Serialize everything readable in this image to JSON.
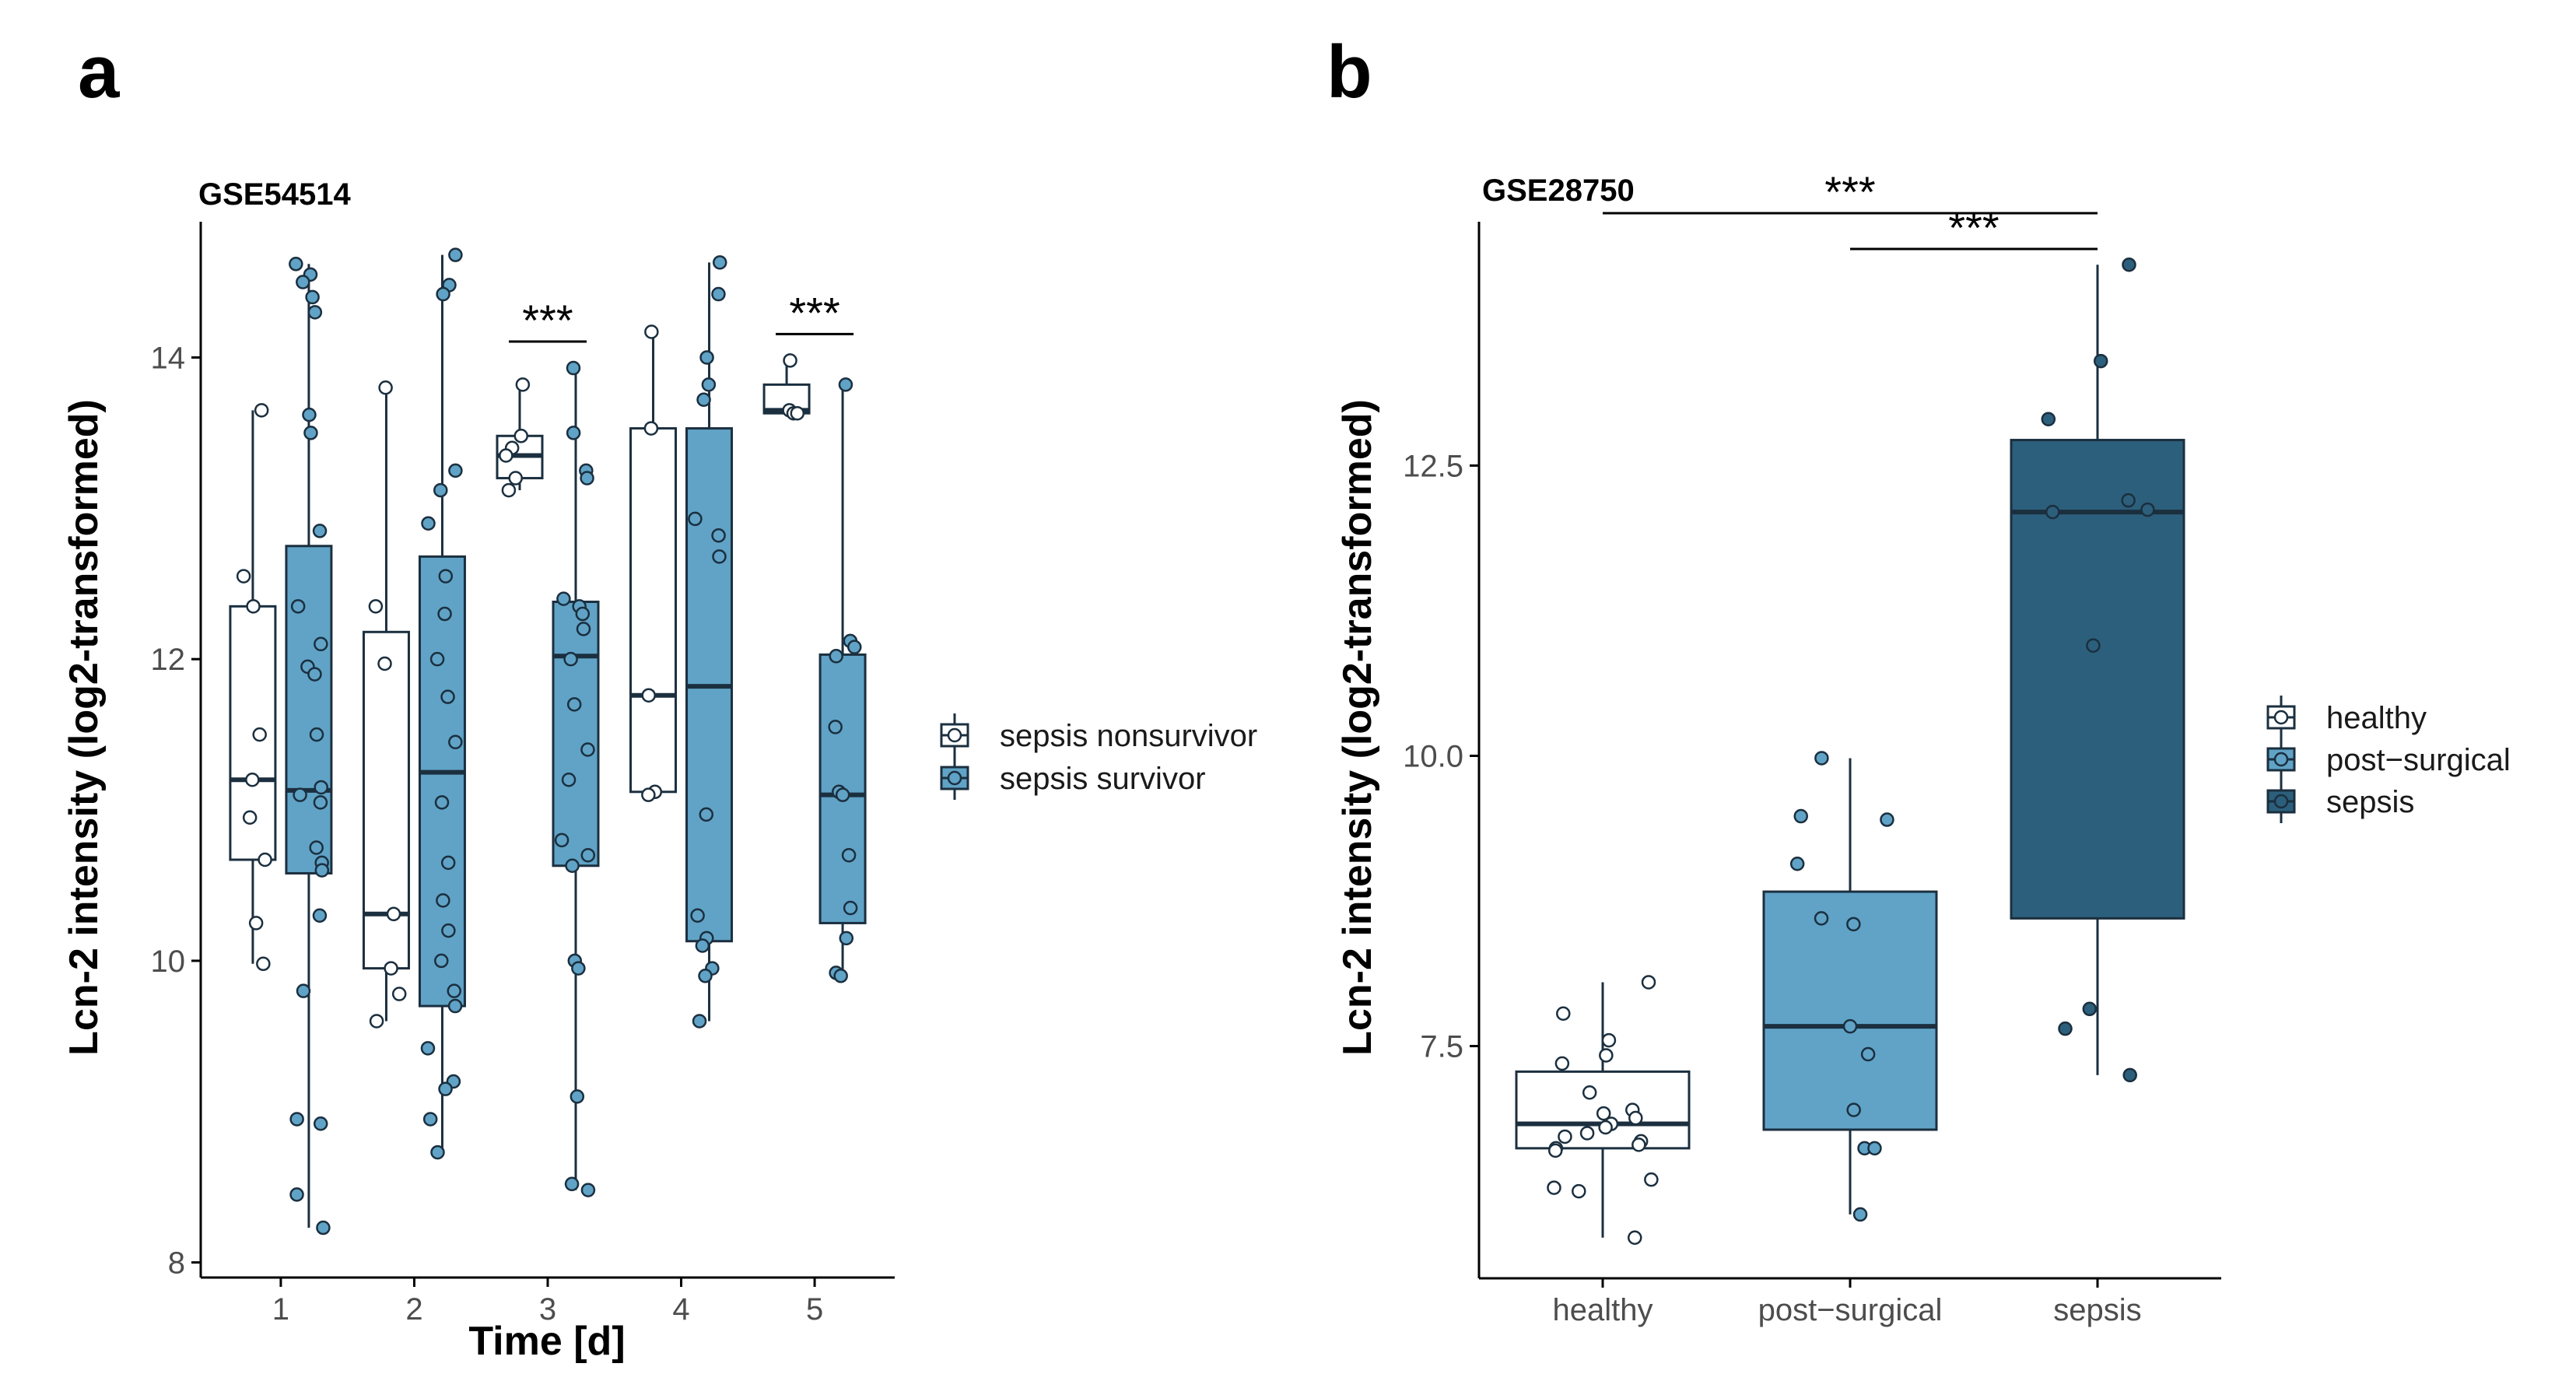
{
  "colors": {
    "nonsurvivor": "#ffffff",
    "survivor": "#60a3c6",
    "healthy": "#ffffff",
    "post_surgical": "#60a3c6",
    "sepsis": "#2c5f7b",
    "outline": "#1b2f3f",
    "axis": "#000000"
  },
  "chart_data": [
    {
      "type": "box",
      "panel": "a",
      "title": "GSE54514",
      "xlabel": "Time [d]",
      "ylabel": "Lcn-2 intensity (log2-transformed)",
      "ylim": [
        7.9,
        14.9
      ],
      "yticks": [
        8,
        10,
        12,
        14
      ],
      "categories": [
        "1",
        "2",
        "3",
        "4",
        "5"
      ],
      "legend": {
        "position": "right",
        "entries": [
          "sepsis nonsurvivor",
          "sepsis survivor"
        ]
      },
      "significance": [
        {
          "category": "3",
          "label": "***"
        },
        {
          "category": "5",
          "label": "***"
        }
      ],
      "series": [
        {
          "name": "sepsis nonsurvivor",
          "color_key": "nonsurvivor",
          "boxes": [
            {
              "category": "1",
              "lower_whisker": 9.98,
              "q1": 10.67,
              "median": 11.2,
              "q3": 12.35,
              "upper_whisker": 13.65,
              "points": [
                13.65,
                12.55,
                12.35,
                11.5,
                11.2,
                10.95,
                10.67,
                10.25,
                9.98
              ]
            },
            {
              "category": "2",
              "lower_whisker": 9.6,
              "q1": 9.95,
              "median": 10.31,
              "q3": 12.18,
              "upper_whisker": 13.8,
              "points": [
                13.8,
                12.35,
                11.97,
                10.31,
                9.95,
                9.78,
                9.6
              ]
            },
            {
              "category": "3",
              "lower_whisker": 13.12,
              "q1": 13.2,
              "median": 13.35,
              "q3": 13.48,
              "upper_whisker": 13.82,
              "points": [
                13.82,
                13.48,
                13.4,
                13.35,
                13.2,
                13.12
              ]
            },
            {
              "category": "4",
              "lower_whisker": 11.1,
              "q1": 11.12,
              "median": 11.76,
              "q3": 13.53,
              "upper_whisker": 14.17,
              "points": [
                14.17,
                13.53,
                11.76,
                11.12,
                11.1
              ]
            },
            {
              "category": "5",
              "lower_whisker": 13.63,
              "q1": 13.63,
              "median": 13.65,
              "q3": 13.82,
              "upper_whisker": 13.98,
              "points": [
                13.98,
                13.65,
                13.63,
                13.63
              ]
            }
          ]
        },
        {
          "name": "sepsis survivor",
          "color_key": "survivor",
          "boxes": [
            {
              "category": "1",
              "lower_whisker": 8.23,
              "q1": 10.58,
              "median": 11.13,
              "q3": 12.75,
              "upper_whisker": 14.62,
              "points": [
                14.62,
                14.55,
                14.5,
                14.4,
                14.3,
                13.62,
                13.5,
                12.85,
                12.35,
                12.1,
                11.95,
                11.9,
                11.5,
                11.15,
                11.1,
                11.05,
                10.75,
                10.65,
                10.6,
                10.3,
                9.8,
                8.95,
                8.92,
                8.45,
                8.23
              ]
            },
            {
              "category": "2",
              "lower_whisker": 8.73,
              "q1": 9.7,
              "median": 11.25,
              "q3": 12.68,
              "upper_whisker": 14.68,
              "points": [
                14.68,
                14.48,
                14.42,
                13.25,
                13.12,
                12.9,
                12.55,
                12.3,
                12.0,
                11.75,
                11.45,
                11.05,
                10.65,
                10.4,
                10.2,
                10.0,
                9.8,
                9.7,
                9.42,
                9.2,
                9.15,
                8.95,
                8.73
              ]
            },
            {
              "category": "3",
              "lower_whisker": 8.48,
              "q1": 10.63,
              "median": 12.02,
              "q3": 12.38,
              "upper_whisker": 13.93,
              "points": [
                13.93,
                13.5,
                13.25,
                13.2,
                12.4,
                12.35,
                12.3,
                12.2,
                12.0,
                11.7,
                11.4,
                11.2,
                10.8,
                10.7,
                10.63,
                10.0,
                9.95,
                9.1,
                8.52,
                8.48
              ]
            },
            {
              "category": "4",
              "lower_whisker": 9.6,
              "q1": 10.13,
              "median": 11.82,
              "q3": 13.53,
              "upper_whisker": 14.63,
              "points": [
                14.63,
                14.42,
                14.0,
                13.82,
                13.72,
                12.93,
                12.82,
                12.68,
                10.97,
                10.3,
                10.15,
                10.1,
                9.95,
                9.9,
                9.6
              ]
            },
            {
              "category": "5",
              "lower_whisker": 9.9,
              "q1": 10.25,
              "median": 11.1,
              "q3": 12.03,
              "upper_whisker": 13.82,
              "points": [
                13.82,
                12.12,
                12.08,
                12.02,
                11.55,
                11.12,
                11.1,
                10.7,
                10.35,
                10.15,
                9.92,
                9.9
              ]
            }
          ]
        }
      ]
    },
    {
      "type": "box",
      "panel": "b",
      "title": "GSE28750",
      "xlabel": "",
      "ylabel": "Lcn-2 intensity (log2-transformed)",
      "ylim": [
        5.5,
        14.6
      ],
      "yticks": [
        7.5,
        10.0,
        12.5
      ],
      "ytick_labels": [
        "7.5",
        "10.0",
        "12.5"
      ],
      "categories": [
        "healthy",
        "post−surgical",
        "sepsis"
      ],
      "legend": {
        "position": "right",
        "entries": [
          "healthy",
          "post−surgical",
          "sepsis"
        ]
      },
      "significance": [
        {
          "from": "healthy",
          "to": "sepsis",
          "label": "***"
        },
        {
          "from": "post−surgical",
          "to": "sepsis",
          "label": "***"
        }
      ],
      "boxes": [
        {
          "category": "healthy",
          "color_key": "healthy",
          "lower_whisker": 5.85,
          "q1": 6.62,
          "median": 6.83,
          "q3": 7.28,
          "upper_whisker": 8.05,
          "points": [
            8.05,
            7.78,
            7.55,
            7.42,
            7.35,
            7.1,
            6.95,
            6.92,
            6.88,
            6.83,
            6.8,
            6.75,
            6.72,
            6.68,
            6.65,
            6.62,
            6.6,
            6.35,
            6.28,
            6.25,
            5.85
          ]
        },
        {
          "category": "post−surgical",
          "color_key": "post_surgical",
          "lower_whisker": 6.05,
          "q1": 6.78,
          "median": 7.67,
          "q3": 8.83,
          "upper_whisker": 9.98,
          "points": [
            9.98,
            9.48,
            9.45,
            9.07,
            8.6,
            8.55,
            7.67,
            7.43,
            6.95,
            6.62,
            6.62,
            6.05
          ]
        },
        {
          "category": "sepsis",
          "color_key": "sepsis",
          "lower_whisker": 7.25,
          "q1": 8.6,
          "median": 12.1,
          "q3": 12.72,
          "upper_whisker": 14.23,
          "points": [
            14.23,
            13.4,
            12.9,
            12.2,
            12.12,
            12.1,
            10.95,
            7.82,
            7.65,
            7.25
          ]
        }
      ]
    }
  ]
}
